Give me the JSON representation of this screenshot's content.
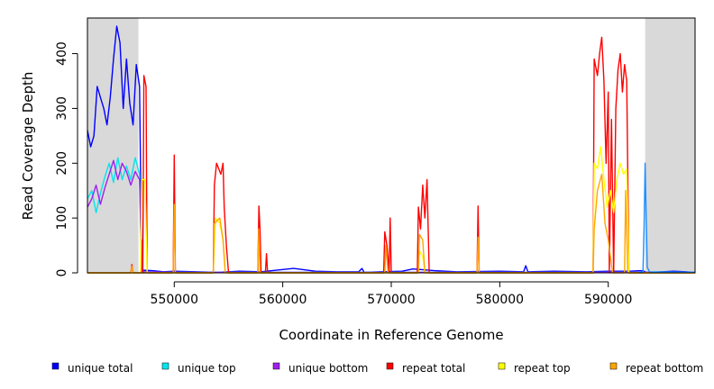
{
  "chart_data": {
    "type": "line",
    "title": "",
    "xlabel": "Coordinate in Reference Genome",
    "ylabel": "Read Coverage Depth",
    "xlim": [
      542000,
      598000
    ],
    "ylim": [
      0,
      465
    ],
    "x_ticks": [
      550000,
      560000,
      570000,
      580000,
      590000
    ],
    "y_ticks": [
      0,
      100,
      200,
      300,
      400
    ],
    "x_tick_labels": [
      "550000",
      "560000",
      "570000",
      "580000",
      "590000"
    ],
    "y_tick_labels": [
      "0",
      "100",
      "200",
      "300",
      "400"
    ],
    "shaded_regions": [
      {
        "x0": 542000,
        "x1": 546700,
        "color": "#d9d9d9"
      },
      {
        "x0": 593400,
        "x1": 598000,
        "color": "#d9d9d9"
      }
    ],
    "grid": false,
    "legend_position": "bottom",
    "series": [
      {
        "name": "unique total",
        "color": "#0000ff",
        "points": [
          [
            542000,
            260
          ],
          [
            542300,
            230
          ],
          [
            542600,
            250
          ],
          [
            542900,
            340
          ],
          [
            543200,
            320
          ],
          [
            543500,
            300
          ],
          [
            543800,
            270
          ],
          [
            544100,
            320
          ],
          [
            544400,
            390
          ],
          [
            544700,
            450
          ],
          [
            545000,
            420
          ],
          [
            545300,
            300
          ],
          [
            545600,
            390
          ],
          [
            545900,
            310
          ],
          [
            546200,
            270
          ],
          [
            546500,
            380
          ],
          [
            546800,
            340
          ],
          [
            547000,
            5
          ],
          [
            548000,
            4
          ],
          [
            549000,
            2
          ],
          [
            550000,
            3
          ],
          [
            552000,
            2
          ],
          [
            554000,
            1
          ],
          [
            556000,
            3
          ],
          [
            558000,
            2
          ],
          [
            561000,
            8
          ],
          [
            563000,
            3
          ],
          [
            565000,
            2
          ],
          [
            567000,
            2
          ],
          [
            567300,
            8
          ],
          [
            567500,
            1
          ],
          [
            569000,
            2
          ],
          [
            571000,
            3
          ],
          [
            572000,
            7
          ],
          [
            574000,
            4
          ],
          [
            576000,
            2
          ],
          [
            580000,
            3
          ],
          [
            582200,
            2
          ],
          [
            582400,
            13
          ],
          [
            582600,
            2
          ],
          [
            585000,
            3
          ],
          [
            588000,
            2
          ],
          [
            590000,
            3
          ],
          [
            592000,
            3
          ],
          [
            593000,
            4
          ],
          [
            593300,
            3
          ],
          [
            593500,
            1
          ],
          [
            594000,
            1
          ],
          [
            596000,
            3
          ],
          [
            598000,
            1
          ]
        ]
      },
      {
        "name": "unique top",
        "color": "#00e5ee",
        "points": [
          [
            542000,
            135
          ],
          [
            542400,
            150
          ],
          [
            542800,
            110
          ],
          [
            543200,
            145
          ],
          [
            543600,
            175
          ],
          [
            544000,
            200
          ],
          [
            544400,
            165
          ],
          [
            544800,
            210
          ],
          [
            545200,
            170
          ],
          [
            545600,
            195
          ],
          [
            546000,
            170
          ],
          [
            546400,
            210
          ],
          [
            546800,
            180
          ],
          [
            547000,
            2
          ],
          [
            550000,
            1
          ],
          [
            560000,
            1
          ],
          [
            570000,
            1
          ],
          [
            580000,
            1
          ],
          [
            590000,
            1
          ],
          [
            593300,
            1
          ],
          [
            598000,
            1
          ]
        ]
      },
      {
        "name": "unique bottom",
        "color": "#a020f0",
        "points": [
          [
            542000,
            120
          ],
          [
            542400,
            135
          ],
          [
            542800,
            160
          ],
          [
            543200,
            125
          ],
          [
            543600,
            155
          ],
          [
            544000,
            180
          ],
          [
            544400,
            205
          ],
          [
            544800,
            170
          ],
          [
            545200,
            200
          ],
          [
            545600,
            185
          ],
          [
            546000,
            160
          ],
          [
            546400,
            185
          ],
          [
            546800,
            170
          ],
          [
            547000,
            2
          ],
          [
            550000,
            1
          ],
          [
            560000,
            1
          ],
          [
            570000,
            1
          ],
          [
            580000,
            1
          ],
          [
            590000,
            1
          ],
          [
            593300,
            1
          ],
          [
            598000,
            1
          ]
        ]
      },
      {
        "name": "repeat total",
        "color": "#ff0000",
        "points": [
          [
            542000,
            0
          ],
          [
            546000,
            0
          ],
          [
            546100,
            15
          ],
          [
            546200,
            0
          ],
          [
            546900,
            0
          ],
          [
            547000,
            60
          ],
          [
            547100,
            0
          ],
          [
            547200,
            360
          ],
          [
            547400,
            340
          ],
          [
            547500,
            0
          ],
          [
            549900,
            0
          ],
          [
            550000,
            215
          ],
          [
            550100,
            0
          ],
          [
            553600,
            0
          ],
          [
            553700,
            160
          ],
          [
            553900,
            200
          ],
          [
            554300,
            180
          ],
          [
            554500,
            200
          ],
          [
            554600,
            120
          ],
          [
            554800,
            50
          ],
          [
            555000,
            0
          ],
          [
            557700,
            0
          ],
          [
            557800,
            122
          ],
          [
            557900,
            80
          ],
          [
            558000,
            0
          ],
          [
            558400,
            0
          ],
          [
            558500,
            35
          ],
          [
            558600,
            0
          ],
          [
            569300,
            0
          ],
          [
            569400,
            75
          ],
          [
            569600,
            50
          ],
          [
            569800,
            0
          ],
          [
            569900,
            100
          ],
          [
            570000,
            0
          ],
          [
            572400,
            0
          ],
          [
            572500,
            120
          ],
          [
            572700,
            80
          ],
          [
            572900,
            160
          ],
          [
            573100,
            100
          ],
          [
            573300,
            170
          ],
          [
            573500,
            0
          ],
          [
            577900,
            0
          ],
          [
            578000,
            122
          ],
          [
            578100,
            0
          ],
          [
            588600,
            0
          ],
          [
            588700,
            390
          ],
          [
            589000,
            360
          ],
          [
            589200,
            400
          ],
          [
            589400,
            430
          ],
          [
            589600,
            350
          ],
          [
            589800,
            200
          ],
          [
            590000,
            330
          ],
          [
            590100,
            0
          ],
          [
            590300,
            280
          ],
          [
            590500,
            0
          ],
          [
            590700,
            300
          ],
          [
            590900,
            370
          ],
          [
            591100,
            400
          ],
          [
            591300,
            330
          ],
          [
            591500,
            380
          ],
          [
            591700,
            350
          ],
          [
            591900,
            0
          ],
          [
            598000,
            0
          ]
        ]
      },
      {
        "name": "repeat top",
        "color": "#ffff00",
        "points": [
          [
            542000,
            0
          ],
          [
            546900,
            0
          ],
          [
            547000,
            170
          ],
          [
            547300,
            170
          ],
          [
            547500,
            0
          ],
          [
            553600,
            0
          ],
          [
            553800,
            100
          ],
          [
            554200,
            90
          ],
          [
            554500,
            60
          ],
          [
            554700,
            0
          ],
          [
            572500,
            0
          ],
          [
            572600,
            40
          ],
          [
            572900,
            30
          ],
          [
            573100,
            0
          ],
          [
            588600,
            0
          ],
          [
            588700,
            200
          ],
          [
            589000,
            190
          ],
          [
            589300,
            230
          ],
          [
            589600,
            170
          ],
          [
            589900,
            120
          ],
          [
            590200,
            150
          ],
          [
            590500,
            110
          ],
          [
            590800,
            170
          ],
          [
            591100,
            200
          ],
          [
            591400,
            180
          ],
          [
            591700,
            190
          ],
          [
            591900,
            0
          ],
          [
            598000,
            0
          ]
        ]
      },
      {
        "name": "repeat bottom",
        "color": "#ffa500",
        "points": [
          [
            542000,
            0
          ],
          [
            546000,
            0
          ],
          [
            546100,
            12
          ],
          [
            546200,
            0
          ],
          [
            549900,
            0
          ],
          [
            550000,
            125
          ],
          [
            550100,
            0
          ],
          [
            553600,
            0
          ],
          [
            553700,
            90
          ],
          [
            554200,
            100
          ],
          [
            554500,
            60
          ],
          [
            554700,
            0
          ],
          [
            557700,
            0
          ],
          [
            557800,
            80
          ],
          [
            557900,
            0
          ],
          [
            569400,
            0
          ],
          [
            569500,
            50
          ],
          [
            569700,
            0
          ],
          [
            572500,
            0
          ],
          [
            572600,
            70
          ],
          [
            572900,
            60
          ],
          [
            573100,
            0
          ],
          [
            577900,
            0
          ],
          [
            578000,
            65
          ],
          [
            578100,
            0
          ],
          [
            588600,
            0
          ],
          [
            588700,
            80
          ],
          [
            589000,
            150
          ],
          [
            589400,
            180
          ],
          [
            589700,
            90
          ],
          [
            590000,
            60
          ],
          [
            590400,
            0
          ],
          [
            591500,
            0
          ],
          [
            591600,
            150
          ],
          [
            591800,
            0
          ],
          [
            598000,
            0
          ]
        ]
      },
      {
        "name": "",
        "color": "#1e90ff",
        "points": [
          [
            592800,
            0
          ],
          [
            593200,
            2
          ],
          [
            593300,
            80
          ],
          [
            593400,
            200
          ],
          [
            593500,
            100
          ],
          [
            593600,
            10
          ],
          [
            593800,
            2
          ],
          [
            598000,
            1
          ]
        ]
      }
    ]
  }
}
